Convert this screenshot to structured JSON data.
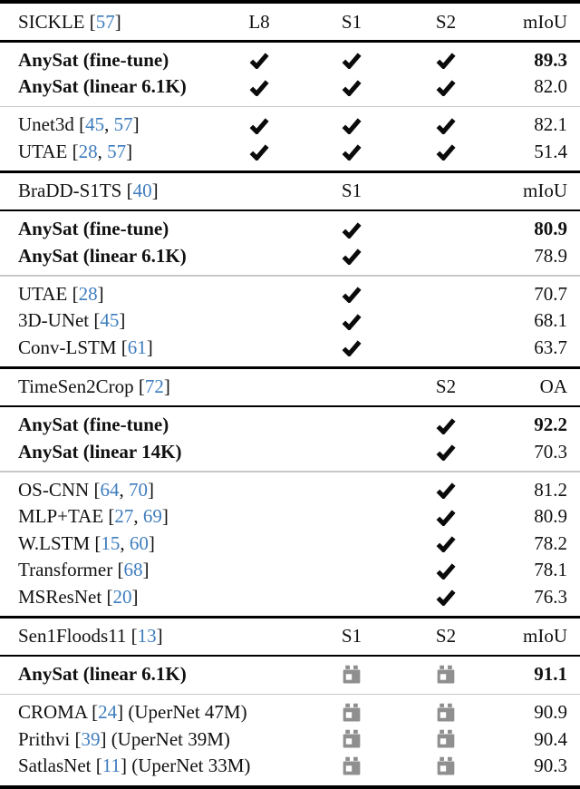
{
  "colors": {
    "text": "#111111",
    "citation": "#3e7dbe",
    "rule": "#000000",
    "thin_rule": "#c8c8c8",
    "icon_gray": "#8f8f8f",
    "check_black": "#0a0a0a"
  },
  "table": {
    "sections": [
      {
        "dataset": "SICKLE",
        "dataset_citations": [
          "57"
        ],
        "column_labels": {
          "l8": "L8",
          "s1": "S1",
          "s2": "S2"
        },
        "metric_label": "mIoU",
        "groups": [
          {
            "rows": [
              {
                "label": "AnySat (fine-tune)",
                "bold": true,
                "citations": [],
                "suffix": "",
                "cells": {
                  "l8": "check",
                  "s1": "check",
                  "s2": "check"
                },
                "value": "89.3",
                "value_bold": true
              },
              {
                "label": "AnySat (linear 6.1K)",
                "bold": true,
                "citations": [],
                "suffix": "",
                "cells": {
                  "l8": "check",
                  "s1": "check",
                  "s2": "check"
                },
                "value": "82.0",
                "value_bold": false
              }
            ]
          },
          {
            "rows": [
              {
                "label": "Unet3d",
                "bold": false,
                "citations": [
                  "45",
                  "57"
                ],
                "suffix": "",
                "cells": {
                  "l8": "check",
                  "s1": "check",
                  "s2": "check"
                },
                "value": "82.1",
                "value_bold": false
              },
              {
                "label": "UTAE",
                "bold": false,
                "citations": [
                  "28",
                  "57"
                ],
                "suffix": "",
                "cells": {
                  "l8": "check",
                  "s1": "check",
                  "s2": "check"
                },
                "value": "51.4",
                "value_bold": false
              }
            ]
          }
        ]
      },
      {
        "dataset": "BraDD-S1TS",
        "dataset_citations": [
          "40"
        ],
        "column_labels": {
          "s1": "S1"
        },
        "metric_label": "mIoU",
        "groups": [
          {
            "rows": [
              {
                "label": "AnySat (fine-tune)",
                "bold": true,
                "citations": [],
                "suffix": "",
                "cells": {
                  "s1": "check"
                },
                "value": "80.9",
                "value_bold": true
              },
              {
                "label": "AnySat (linear 6.1K)",
                "bold": true,
                "citations": [],
                "suffix": "",
                "cells": {
                  "s1": "check"
                },
                "value": "78.9",
                "value_bold": false
              }
            ]
          },
          {
            "rows": [
              {
                "label": "UTAE",
                "bold": false,
                "citations": [
                  "28"
                ],
                "suffix": "",
                "cells": {
                  "s1": "check"
                },
                "value": "70.7",
                "value_bold": false
              },
              {
                "label": "3D-UNet",
                "bold": false,
                "citations": [
                  "45"
                ],
                "suffix": "",
                "cells": {
                  "s1": "check"
                },
                "value": "68.1",
                "value_bold": false
              },
              {
                "label": "Conv-LSTM",
                "bold": false,
                "citations": [
                  "61"
                ],
                "suffix": "",
                "cells": {
                  "s1": "check"
                },
                "value": "63.7",
                "value_bold": false
              }
            ]
          }
        ]
      },
      {
        "dataset": "TimeSen2Crop",
        "dataset_citations": [
          "72"
        ],
        "column_labels": {
          "s2": "S2"
        },
        "metric_label": "OA",
        "groups": [
          {
            "rows": [
              {
                "label": "AnySat (fine-tune)",
                "bold": true,
                "citations": [],
                "suffix": "",
                "cells": {
                  "s2": "check"
                },
                "value": "92.2",
                "value_bold": true
              },
              {
                "label": "AnySat (linear 14K)",
                "bold": true,
                "citations": [],
                "suffix": "",
                "cells": {
                  "s2": "check"
                },
                "value": "70.3",
                "value_bold": false
              }
            ]
          },
          {
            "rows": [
              {
                "label": "OS-CNN",
                "bold": false,
                "citations": [
                  "64",
                  "70"
                ],
                "suffix": "",
                "cells": {
                  "s2": "check"
                },
                "value": "81.2",
                "value_bold": false
              },
              {
                "label": "MLP+TAE",
                "bold": false,
                "citations": [
                  "27",
                  "69"
                ],
                "suffix": "",
                "cells": {
                  "s2": "check"
                },
                "value": "80.9",
                "value_bold": false
              },
              {
                "label": "W.LSTM",
                "bold": false,
                "citations": [
                  "15",
                  "60"
                ],
                "suffix": "",
                "cells": {
                  "s2": "check"
                },
                "value": "78.2",
                "value_bold": false
              },
              {
                "label": "Transformer",
                "bold": false,
                "citations": [
                  "68"
                ],
                "suffix": "",
                "cells": {
                  "s2": "check"
                },
                "value": "78.1",
                "value_bold": false
              },
              {
                "label": "MSResNet",
                "bold": false,
                "citations": [
                  "20"
                ],
                "suffix": "",
                "cells": {
                  "s2": "check"
                },
                "value": "76.3",
                "value_bold": false
              }
            ]
          }
        ]
      },
      {
        "dataset": "Sen1Floods11",
        "dataset_citations": [
          "13"
        ],
        "column_labels": {
          "s1": "S1",
          "s2": "S2"
        },
        "metric_label": "mIoU",
        "groups": [
          {
            "rows": [
              {
                "label": "AnySat (linear 6.1K)",
                "bold": true,
                "citations": [],
                "suffix": "",
                "cells": {
                  "s1": "calendar",
                  "s2": "calendar"
                },
                "value": "91.1",
                "value_bold": true
              }
            ]
          },
          {
            "rows": [
              {
                "label": "CROMA",
                "bold": false,
                "citations": [
                  "24"
                ],
                "suffix": " (UperNet 47M)",
                "cells": {
                  "s1": "calendar",
                  "s2": "calendar"
                },
                "value": "90.9",
                "value_bold": false
              },
              {
                "label": "Prithvi",
                "bold": false,
                "citations": [
                  "39"
                ],
                "suffix": " (UperNet 39M)",
                "cells": {
                  "s1": "calendar",
                  "s2": "calendar"
                },
                "value": "90.4",
                "value_bold": false
              },
              {
                "label": "SatlasNet",
                "bold": false,
                "citations": [
                  "11"
                ],
                "suffix": " (UperNet 33M)",
                "cells": {
                  "s1": "calendar",
                  "s2": "calendar"
                },
                "value": "90.3",
                "value_bold": false
              }
            ]
          }
        ]
      }
    ]
  }
}
